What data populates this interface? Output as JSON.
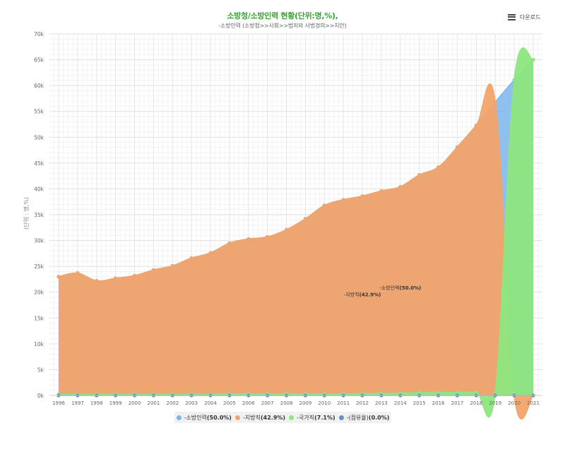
{
  "header": {
    "title": "소방청/소방인력 현황(단위:명,%),",
    "subtitle": "-소방인력 (소방청>>사회>>범죄와 사법경의>>치안)",
    "download_label": "다운로드"
  },
  "colors": {
    "total": "#7db5ec",
    "local": "#f2a46a",
    "national": "#8ee67e",
    "other": "#6b8fbd",
    "grid": "#e6e6e6",
    "axis_text": "#666666"
  },
  "chart_data": {
    "type": "area",
    "title": "소방청/소방인력 현황(단위:명,%),",
    "subtitle": "-소방인력 (소방청>>사회>>범죄와 사법경의>>치안)",
    "xlabel": "",
    "ylabel": "(단위 : 명,%)",
    "ylim": [
      0,
      70000
    ],
    "yticks": [
      0,
      5000,
      10000,
      15000,
      20000,
      25000,
      30000,
      35000,
      40000,
      45000,
      50000,
      55000,
      60000,
      65000,
      70000
    ],
    "ytick_labels": [
      "0k",
      "5k",
      "10k",
      "15k",
      "20k",
      "25k",
      "30k",
      "35k",
      "40k",
      "45k",
      "50k",
      "55k",
      "60k",
      "65k",
      "70k"
    ],
    "categories": [
      "1996",
      "1997",
      "1998",
      "1999",
      "2000",
      "2001",
      "2002",
      "2003",
      "2004",
      "2005",
      "2006",
      "2007",
      "2008",
      "2009",
      "2010",
      "2011",
      "2012",
      "2013",
      "2014",
      "2015",
      "2016",
      "2017",
      "2018",
      "2019",
      "2020",
      "2021"
    ],
    "grid": true,
    "legend_position": "bottom",
    "series": [
      {
        "name": "-소방인력",
        "pct": "(50.0%)",
        "color": "#7db5ec",
        "values": [
          23000,
          23700,
          22200,
          22700,
          23200,
          24300,
          25100,
          26600,
          27600,
          29500,
          30300,
          30700,
          32100,
          34200,
          36800,
          37900,
          38600,
          39600,
          40400,
          42700,
          44200,
          48100,
          52300,
          56800,
          61100,
          65000
        ]
      },
      {
        "name": "-지방직",
        "pct": "(42.9%)",
        "color": "#f2a46a",
        "values": [
          23000,
          23700,
          22200,
          22700,
          23200,
          24300,
          25100,
          26600,
          27600,
          29500,
          30300,
          30700,
          32100,
          34200,
          36800,
          37900,
          38600,
          39600,
          40400,
          42700,
          44200,
          48100,
          52300,
          56800,
          0,
          0
        ]
      },
      {
        "name": "-국가직",
        "pct": "(7.1%)",
        "color": "#8ee67e",
        "values": [
          200,
          200,
          200,
          200,
          200,
          200,
          200,
          200,
          200,
          300,
          300,
          300,
          300,
          300,
          300,
          300,
          350,
          400,
          450,
          550,
          550,
          600,
          650,
          700,
          61100,
          65000
        ]
      },
      {
        "name": "-(점유율)",
        "pct": "(0.0%)",
        "color": "#6b8fbd",
        "values": [
          0,
          0,
          0,
          0,
          0,
          0,
          0,
          0,
          0,
          0,
          0,
          0,
          0,
          0,
          0,
          0,
          0,
          0,
          0,
          0,
          0,
          0,
          0,
          0,
          0,
          0
        ]
      }
    ],
    "annotations": [
      {
        "text_name": "-소방인력",
        "text_pct": "(50.0%)",
        "x": "2014",
        "y": 20500
      },
      {
        "text_name": "-지방직",
        "text_pct": "(42.9%)",
        "x": "2012",
        "y": 19200
      }
    ]
  }
}
